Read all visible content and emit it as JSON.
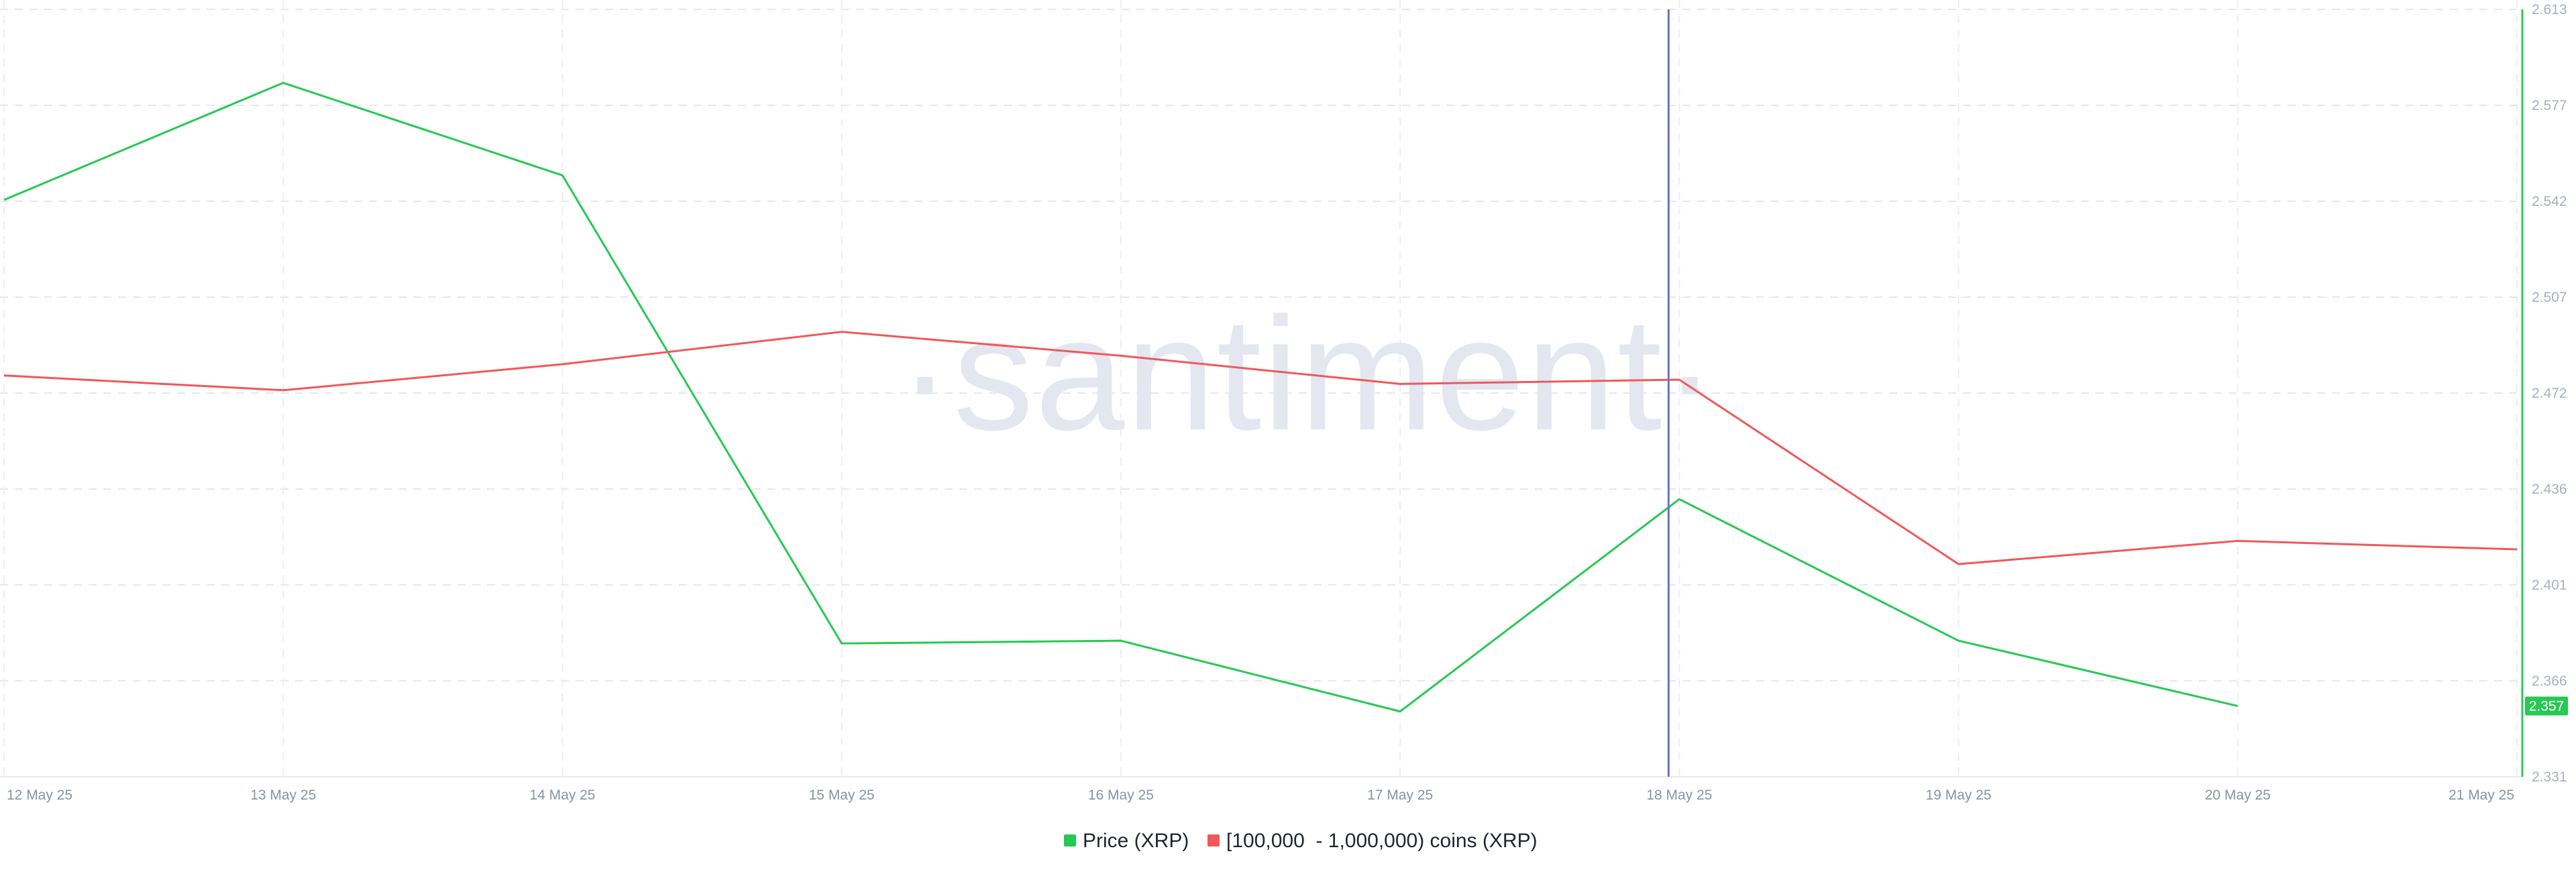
{
  "chart_data": {
    "type": "line",
    "watermark": "·santiment·",
    "x": [
      "12 May 25",
      "13 May 25",
      "14 May 25",
      "15 May 25",
      "16 May 25",
      "17 May 25",
      "18 May 25",
      "19 May 25",
      "20 May 25",
      "21 May 25"
    ],
    "y_right": {
      "ticks": [
        "2.613",
        "2.577",
        "2.542",
        "2.507",
        "2.472",
        "2.436",
        "2.401",
        "2.366",
        "2.331"
      ],
      "range": [
        2.331,
        2.613
      ]
    },
    "series": [
      {
        "name": "Price (XRP)",
        "color": "#26c953",
        "axis": "right",
        "values": [
          2.543,
          2.586,
          2.552,
          2.38,
          2.381,
          2.355,
          2.433,
          2.381,
          2.357,
          null
        ],
        "last_value_label": "2.357"
      },
      {
        "name": "[100,000  - 1,000,000) coins (XRP)",
        "color": "#f0585b",
        "axis": "hidden",
        "values": [
          2.2,
          2.179,
          2.216,
          2.262,
          2.228,
          2.188,
          2.194,
          1.932,
          1.965,
          1.953
        ],
        "range": [
          1.63,
          2.72
        ]
      }
    ],
    "crosshair_x": "18 May 25",
    "crosshair_color": "#6b6fcf",
    "grid": true,
    "legend_position": "bottom-center"
  }
}
